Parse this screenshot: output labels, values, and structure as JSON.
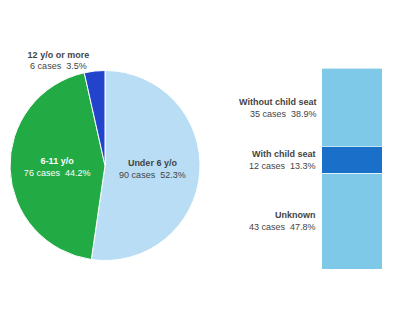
{
  "chart_data": [
    {
      "type": "pie",
      "categories": [
        "Under 6 y/o",
        "6-11 y/o",
        "12 y/o or more"
      ],
      "values": [
        52.3,
        44.2,
        3.5
      ],
      "value_labels": [
        "90 cases  52.3%",
        "76 cases  44.2%",
        "6 cases  3.5%"
      ],
      "colors": [
        "#b8ddf5",
        "#22aa44",
        "#2244cc"
      ],
      "data_labels": true
    },
    {
      "type": "bar",
      "stacked": true,
      "categories": [
        null
      ],
      "series": [
        {
          "name": "Unknown",
          "color": "#7ec8e8",
          "values": [
            47.8
          ],
          "value_labels": [
            "43 cases  47.8%"
          ]
        },
        {
          "name": "With child seat",
          "color": "#1a70c8",
          "values": [
            13.3
          ],
          "value_labels": [
            "12 cases  13.3%"
          ]
        },
        {
          "name": "Without child seat",
          "color": "#7ec8e8",
          "values": [
            38.9
          ],
          "value_labels": [
            "35 cases  38.9%"
          ]
        }
      ],
      "ylim": [
        0,
        100
      ],
      "tick_labels": false,
      "data_labels": true
    }
  ]
}
